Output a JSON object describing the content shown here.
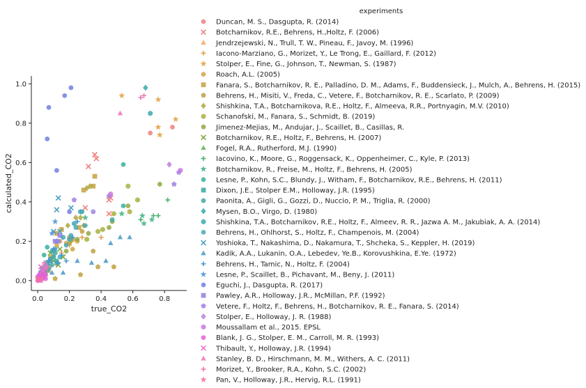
{
  "chart_data": {
    "type": "scatter",
    "title": "",
    "xlabel": "true_CO2",
    "ylabel": "calculated_CO2",
    "xlim": [
      -0.04,
      0.94
    ],
    "ylim": [
      -0.05,
      1.04
    ],
    "xticks": [
      "0.0",
      "0.2",
      "0.4",
      "0.6",
      "0.8"
    ],
    "yticks": [
      "0.0",
      "0.2",
      "0.4",
      "0.6",
      "0.8",
      "1.0"
    ],
    "grid": false,
    "legend_title": "experiments",
    "legend_position": "right",
    "series": [
      {
        "name": "Duncan, M. S., Dasgupta, R. (2014)",
        "color": "#f08080",
        "marker": "circle",
        "points": [
          [
            0.71,
            0.75
          ],
          [
            0.85,
            0.78
          ]
        ]
      },
      {
        "name": "Botcharnikov, R.E., Behrens, H.,Holtz, F. (2006)",
        "color": "#f08080",
        "marker": "x",
        "points": [
          [
            0.36,
            0.64
          ],
          [
            0.37,
            0.62
          ],
          [
            0.32,
            0.58
          ],
          [
            0.45,
            0.41
          ],
          [
            0.46,
            0.42
          ],
          [
            0.45,
            0.34
          ],
          [
            0.3,
            0.37
          ]
        ]
      },
      {
        "name": "Jendrzejewski, N., Trull, T. W., Pineau, F., Javoy, M. (1996)",
        "color": "#f4a460",
        "marker": "triangle",
        "points": [
          [
            0.05,
            0.03
          ],
          [
            0.07,
            0.05
          ]
        ]
      },
      {
        "name": "Iacono-Marziano, G., Morizet, Y., Le Trong, E., Gaillard, F. (2012)",
        "color": "#e8a050",
        "marker": "plus",
        "points": [
          [
            0.1,
            0.12
          ],
          [
            0.15,
            0.14
          ],
          [
            0.2,
            0.18
          ],
          [
            0.28,
            0.22
          ],
          [
            0.4,
            0.22
          ],
          [
            0.12,
            0.08
          ],
          [
            0.08,
            0.07
          ]
        ]
      },
      {
        "name": "Stolper, E., Fine, G., Johnson, T., Newman, S. (1987)",
        "color": "#e0a040",
        "marker": "star",
        "points": [
          [
            0.53,
            0.94
          ],
          [
            0.76,
            0.92
          ],
          [
            0.87,
            0.82
          ],
          [
            0.76,
            0.78
          ],
          [
            0.77,
            0.74
          ]
        ]
      },
      {
        "name": "Roach, A.L. (2005)",
        "color": "#d4a545",
        "marker": "circle",
        "points": [
          [
            0.1,
            0.15
          ],
          [
            0.12,
            0.18
          ],
          [
            0.14,
            0.2
          ],
          [
            0.18,
            0.19
          ],
          [
            0.2,
            0.22
          ],
          [
            0.22,
            0.16
          ],
          [
            0.25,
            0.2
          ],
          [
            0.08,
            0.12
          ]
        ]
      },
      {
        "name": "Fanara, S., Botcharnikov, R. E., Palladino, D. M., Adams, F., Buddensieck, J., Mulch, A., Behrens, H. (2015)",
        "color": "#c8a040",
        "marker": "square",
        "points": [
          [
            0.36,
            0.53
          ],
          [
            0.29,
            0.46
          ],
          [
            0.35,
            0.48
          ],
          [
            0.15,
            0.26
          ],
          [
            0.22,
            0.21
          ],
          [
            0.26,
            0.27
          ],
          [
            0.12,
            0.24
          ]
        ]
      },
      {
        "name": "Behrens, H., Misiti, V., Freda, C., Vetere, F., Botcharnikov, R. E., Scarlato, P. (2009)",
        "color": "#c0a040",
        "marker": "pentagon",
        "points": [
          [
            0.38,
            0.07
          ],
          [
            0.48,
            0.07
          ],
          [
            0.27,
            0.03
          ],
          [
            0.11,
            0.01
          ],
          [
            0.2,
            0.19
          ],
          [
            0.28,
            0.25
          ],
          [
            0.35,
            0.15
          ]
        ]
      },
      {
        "name": "Shishkina, T.A., Botcharnikova, R.E., Holtz,  F., Almeeva, R.R., Portnyagin, M.V. (2010)",
        "color": "#b0a840",
        "marker": "diamond",
        "points": [
          [
            0.33,
            0.48
          ],
          [
            0.31,
            0.47
          ],
          [
            0.24,
            0.32
          ],
          [
            0.27,
            0.32
          ],
          [
            0.19,
            0.28
          ],
          [
            0.29,
            0.28
          ],
          [
            0.21,
            0.2
          ]
        ]
      },
      {
        "name": "Schanofski, M., Fanara, S., Schmidt, B. (2019)",
        "color": "#a8b040",
        "marker": "hexagon",
        "points": [
          [
            0.57,
            0.48
          ],
          [
            0.58,
            0.35
          ],
          [
            0.63,
            0.41
          ],
          [
            0.48,
            0.34
          ],
          [
            0.41,
            0.26
          ],
          [
            0.38,
            0.25
          ],
          [
            0.31,
            0.21
          ]
        ]
      },
      {
        "name": "Jimenez-Mejias, M., Andujar, J., Scaillet, B., Casillas, R.",
        "color": "#90a840",
        "marker": "circle",
        "points": [
          [
            0.77,
            0.49
          ],
          [
            0.57,
            0.38
          ],
          [
            0.47,
            0.3
          ],
          [
            0.45,
            0.27
          ],
          [
            0.32,
            0.24
          ],
          [
            0.25,
            0.21
          ],
          [
            0.18,
            0.15
          ]
        ]
      },
      {
        "name": "Botcharnikov, R.E., Holtz, F., Behrens, H. (2007)",
        "color": "#7aaa40",
        "marker": "x",
        "points": [
          [
            0.14,
            0.16
          ],
          [
            0.16,
            0.12
          ],
          [
            0.1,
            0.1
          ],
          [
            0.08,
            0.14
          ],
          [
            0.13,
            0.08
          ]
        ]
      },
      {
        "name": "Fogel, R.A., Rutherford, M.J. (1990)",
        "color": "#5cb050",
        "marker": "triangle",
        "points": [
          [
            0.05,
            0.04
          ],
          [
            0.04,
            0.03
          ],
          [
            0.06,
            0.05
          ],
          [
            0.03,
            0.06
          ]
        ]
      },
      {
        "name": "Iacovino, K., Moore, G., Roggensack, K., Oppenheimer, C., Kyle, P. (2013)",
        "color": "#4cb070",
        "marker": "plus",
        "points": [
          [
            0.65,
            0.31
          ],
          [
            0.73,
            0.33
          ],
          [
            0.76,
            0.33
          ],
          [
            0.82,
            0.41
          ],
          [
            0.07,
            0.08
          ]
        ]
      },
      {
        "name": "Botcharnikov, R., Freise, M., Holtz, F., Behrens, H. (2005)",
        "color": "#40b080",
        "marker": "star",
        "points": [
          [
            0.66,
            0.33
          ],
          [
            0.67,
            0.29
          ],
          [
            0.72,
            0.31
          ],
          [
            0.53,
            0.34
          ],
          [
            0.3,
            0.32
          ]
        ]
      },
      {
        "name": "Lesne, P., Kohn, S.C., Blundy, J., Witham, F., Botcharnikov, R.E., Behrens, H. (2011)",
        "color": "#38b0a0",
        "marker": "circle",
        "points": [
          [
            0.54,
            0.59
          ],
          [
            0.54,
            0.38
          ],
          [
            0.47,
            0.31
          ],
          [
            0.06,
            0.17
          ],
          [
            0.09,
            0.15
          ],
          [
            0.12,
            0.1
          ],
          [
            0.04,
            0.13
          ]
        ]
      },
      {
        "name": "Dixon, J.E., Stolper E.M., Holloway, J.R. (1995)",
        "color": "#3aa8a0",
        "marker": "square",
        "points": [
          [
            0.02,
            0.04
          ],
          [
            0.03,
            0.06
          ],
          [
            0.04,
            0.05
          ],
          [
            0.05,
            0.07
          ],
          [
            0.06,
            0.09
          ]
        ]
      },
      {
        "name": "Paonita, A., Gigli, G., Gozzi, D., Nuccio, P. M., Triglia, R. (2000)",
        "color": "#40a8a8",
        "marker": "pentagon",
        "points": [
          [
            0.08,
            0.1
          ],
          [
            0.1,
            0.12
          ],
          [
            0.12,
            0.09
          ],
          [
            0.07,
            0.06
          ]
        ]
      },
      {
        "name": "Mysen, B.O., Virgo, D. (1980)",
        "color": "#38a8a8",
        "marker": "diamond",
        "points": [
          [
            0.68,
            0.98
          ]
        ]
      },
      {
        "name": "Shishkina, T.A., Botcharnikov, R.E., Holtz,  F., Almeev, R. R., Jazwa A. M., Jakubiak, A. A. (2014)",
        "color": "#40a8b0",
        "marker": "hexagon",
        "points": [
          [
            0.71,
            0.85
          ],
          [
            0.27,
            0.35
          ],
          [
            0.23,
            0.29
          ],
          [
            0.2,
            0.21
          ],
          [
            0.16,
            0.22
          ],
          [
            0.11,
            0.14
          ],
          [
            0.08,
            0.11
          ]
        ]
      },
      {
        "name": "Behrens, H., Ohlhorst, S., Holtz, F., Champenois, M. (2004)",
        "color": "#48a8b8",
        "marker": "circle",
        "points": [
          [
            0.28,
            0.35
          ],
          [
            0.3,
            0.28
          ],
          [
            0.24,
            0.27
          ],
          [
            0.21,
            0.23
          ],
          [
            0.18,
            0.18
          ],
          [
            0.14,
            0.12
          ],
          [
            0.11,
            0.16
          ],
          [
            0.09,
            0.08
          ]
        ]
      },
      {
        "name": "Yoshioka, T., Nakashima, D., Nakamura, T., Shcheka, S., Keppler, H. (2019)",
        "color": "#48a0c0",
        "marker": "x",
        "points": [
          [
            0.13,
            0.42
          ],
          [
            0.12,
            0.36
          ],
          [
            0.21,
            0.37
          ],
          [
            0.1,
            0.25
          ],
          [
            0.14,
            0.25
          ]
        ]
      },
      {
        "name": "Kadik, A.A., Lukanin, O.A., Lebedev, Ye.B., Korovushkina, E.Ye. (1972)",
        "color": "#4898c8",
        "marker": "triangle",
        "points": [
          [
            0.52,
            0.22
          ],
          [
            0.58,
            0.22
          ],
          [
            0.46,
            0.19
          ],
          [
            0.34,
            0.09
          ],
          [
            0.43,
            0.1
          ],
          [
            0.25,
            0.1
          ],
          [
            0.16,
            0.04
          ],
          [
            0.09,
            0.04
          ]
        ]
      },
      {
        "name": "Behrens, H., Tamic, N., Holtz, F. (2004)",
        "color": "#4898d0",
        "marker": "plus",
        "points": [
          [
            0.25,
            0.3
          ],
          [
            0.22,
            0.22
          ],
          [
            0.18,
            0.1
          ],
          [
            0.15,
            0.13
          ],
          [
            0.13,
            0.09
          ]
        ]
      },
      {
        "name": "Lesne, P., Scaillet, B., Pichavant, M., Beny, J. (2011)",
        "color": "#5090d8",
        "marker": "star",
        "points": [
          [
            0.11,
            0.3
          ],
          [
            0.09,
            0.24
          ],
          [
            0.12,
            0.2
          ],
          [
            0.1,
            0.16
          ],
          [
            0.07,
            0.1
          ]
        ]
      },
      {
        "name": "Eguchi, J., Dasgupta, R. (2017)",
        "color": "#7080e0",
        "marker": "circle",
        "points": [
          [
            0.21,
            0.98
          ],
          [
            0.17,
            0.94
          ],
          [
            0.07,
            0.88
          ],
          [
            0.06,
            0.72
          ],
          [
            0.12,
            0.56
          ],
          [
            0.2,
            0.35
          ]
        ]
      },
      {
        "name": "Pawley, A.R., Holloway, J.R., McMillan, P.F. (1992)",
        "color": "#9080e0",
        "marker": "square",
        "points": [
          [
            0.14,
            0.23
          ],
          [
            0.11,
            0.2
          ]
        ]
      },
      {
        "name": "Vetere, F., Holtz, F., Behrens, H., Botcharnikov, R. E., Fanara, S. (2014)",
        "color": "#a080e0",
        "marker": "pentagon",
        "points": [
          [
            0.89,
            0.55
          ],
          [
            0.86,
            0.49
          ],
          [
            0.45,
            0.43
          ],
          [
            0.23,
            0.41
          ],
          [
            0.35,
            0.35
          ],
          [
            0.13,
            0.2
          ]
        ]
      },
      {
        "name": "Stolper, E., Holloway, J. R. (1988)",
        "color": "#b880e0",
        "marker": "diamond",
        "points": [
          [
            0.83,
            0.59
          ],
          [
            0.05,
            0.08
          ],
          [
            0.04,
            0.06
          ]
        ]
      },
      {
        "name": "Moussallam et al., 2015. EPSL",
        "color": "#c878e0",
        "marker": "hexagon",
        "points": [
          [
            0.9,
            0.56
          ],
          [
            0.46,
            0.44
          ],
          [
            0.02,
            0.03
          ],
          [
            0.03,
            0.04
          ],
          [
            0.01,
            0.02
          ]
        ]
      },
      {
        "name": "Blank, J. G., Stolper, E. M., Carroll, M. R. (1993)",
        "color": "#e060d8",
        "marker": "circle",
        "points": [
          [
            0.0,
            0.0
          ],
          [
            0.01,
            0.01
          ],
          [
            0.02,
            0.02
          ],
          [
            0.03,
            0.01
          ],
          [
            0.04,
            0.02
          ],
          [
            0.01,
            0.03
          ],
          [
            0.02,
            0.04
          ],
          [
            0.03,
            0.03
          ],
          [
            0.05,
            0.01
          ],
          [
            0.0,
            0.02
          ],
          [
            0.04,
            0.04
          ],
          [
            0.05,
            0.03
          ]
        ]
      },
      {
        "name": "Thibault, Y., Holloway, J.R. (1994)",
        "color": "#e870c8",
        "marker": "x",
        "points": [
          [
            0.03,
            0.05
          ],
          [
            0.05,
            0.06
          ],
          [
            0.02,
            0.07
          ]
        ]
      },
      {
        "name": "Stanley, B. D., Hirschmann, M. M., Withers, A. C. (2011)",
        "color": "#f070b8",
        "marker": "triangle",
        "points": [
          [
            0.52,
            0.85
          ],
          [
            0.01,
            0.01
          ],
          [
            0.02,
            0.0
          ]
        ]
      },
      {
        "name": "Morizet, Y., Brooker, R.A., Kohn, S.C. (2002)",
        "color": "#f078b0",
        "marker": "plus",
        "points": [
          [
            0.65,
            0.93
          ],
          [
            0.67,
            0.94
          ],
          [
            0.06,
            0.07
          ],
          [
            0.04,
            0.09
          ]
        ]
      },
      {
        "name": "Pan, V., Holloway, J.R., Hervig, R.L. (1991)",
        "color": "#f070a0",
        "marker": "star",
        "points": [
          [
            0.01,
            0.0
          ],
          [
            0.02,
            0.01
          ],
          [
            0.0,
            0.01
          ]
        ]
      }
    ]
  }
}
